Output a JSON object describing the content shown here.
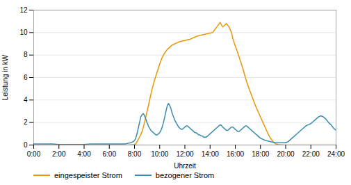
{
  "chart_data": {
    "type": "line",
    "xlabel": "Uhrzeit",
    "ylabel": "Leistung in kW",
    "xlim": [
      0,
      24
    ],
    "ylim": [
      0,
      12
    ],
    "xticks": [
      {
        "value": 0,
        "label": "0:00"
      },
      {
        "value": 2,
        "label": "2:00"
      },
      {
        "value": 4,
        "label": "4:00"
      },
      {
        "value": 6,
        "label": "6:00"
      },
      {
        "value": 8,
        "label": "8:00"
      },
      {
        "value": 10,
        "label": "10:00"
      },
      {
        "value": 12,
        "label": "12:00"
      },
      {
        "value": 14,
        "label": "14:00"
      },
      {
        "value": 16,
        "label": "16:00"
      },
      {
        "value": 18,
        "label": "18:00"
      },
      {
        "value": 20,
        "label": "20:00"
      },
      {
        "value": 22,
        "label": "22:00"
      },
      {
        "value": 24,
        "label": "24:00"
      }
    ],
    "yticks": [
      0,
      2,
      4,
      6,
      8,
      10,
      12
    ],
    "grid": true,
    "legend": "bottom",
    "series": [
      {
        "name": "eingespeister Strom",
        "color": "#E8960A",
        "x": [
          0,
          0.5,
          1,
          1.5,
          2,
          2.5,
          3,
          3.5,
          4,
          4.5,
          5,
          5.5,
          6,
          6.5,
          7,
          7.5,
          8.0,
          8.1,
          8.2,
          8.4,
          8.6,
          8.8,
          9.0,
          9.2,
          9.4,
          9.6,
          9.8,
          10.0,
          10.2,
          10.4,
          10.6,
          10.8,
          11.0,
          11.2,
          11.4,
          11.6,
          11.8,
          12.0,
          12.2,
          12.4,
          12.6,
          12.8,
          13.0,
          13.2,
          13.4,
          13.6,
          13.8,
          14.0,
          14.2,
          14.4,
          14.6,
          14.8,
          15.0,
          15.3,
          15.5,
          15.7,
          15.8,
          16.0,
          16.2,
          16.4,
          16.6,
          16.8,
          17.0,
          17.2,
          17.4,
          17.6,
          17.8,
          18.0,
          18.2,
          18.4,
          18.6,
          18.8,
          19.0,
          19.2,
          19.4,
          19.6,
          19.8,
          19.9,
          20.0,
          20.5,
          21,
          21.5,
          22,
          22.5,
          23,
          23.5,
          24
        ],
        "values": [
          0,
          0,
          0,
          0,
          0,
          0,
          0,
          0,
          0,
          0,
          0,
          0,
          0,
          0,
          0,
          0,
          0.05,
          0.1,
          0.3,
          0.7,
          1.2,
          2.0,
          3.0,
          4.0,
          5.0,
          5.8,
          6.5,
          7.2,
          7.8,
          8.2,
          8.5,
          8.7,
          8.9,
          9.0,
          9.1,
          9.2,
          9.25,
          9.3,
          9.35,
          9.4,
          9.5,
          9.6,
          9.7,
          9.75,
          9.8,
          9.85,
          9.9,
          9.95,
          10.0,
          10.3,
          10.6,
          10.9,
          10.5,
          10.8,
          10.5,
          10.0,
          9.5,
          8.8,
          8.2,
          7.5,
          6.8,
          6.0,
          5.3,
          4.7,
          4.1,
          3.5,
          3.0,
          2.5,
          2.0,
          1.5,
          1.0,
          0.6,
          0.3,
          0.1,
          0.05,
          0.02,
          0.01,
          0.005,
          0.0,
          0,
          0,
          0,
          0,
          0,
          0,
          0,
          0
        ]
      },
      {
        "name": "bezogener Strom",
        "color": "#3A8BAD",
        "x": [
          0,
          0.5,
          1,
          1.5,
          2,
          2.5,
          3,
          3.5,
          4,
          4.5,
          5,
          5.5,
          6,
          6.5,
          7,
          7.3,
          7.5,
          7.7,
          7.9,
          8.0,
          8.1,
          8.2,
          8.3,
          8.4,
          8.5,
          8.6,
          8.7,
          8.8,
          8.9,
          9.0,
          9.1,
          9.2,
          9.3,
          9.4,
          9.5,
          9.6,
          9.7,
          9.8,
          9.9,
          10.0,
          10.1,
          10.2,
          10.3,
          10.4,
          10.5,
          10.6,
          10.7,
          10.8,
          10.9,
          11.0,
          11.1,
          11.2,
          11.3,
          11.4,
          11.5,
          11.6,
          11.7,
          11.8,
          11.9,
          12.0,
          12.1,
          12.2,
          12.3,
          12.4,
          12.5,
          12.6,
          12.7,
          12.8,
          12.9,
          13.0,
          13.1,
          13.2,
          13.3,
          13.4,
          13.5,
          13.6,
          13.7,
          13.8,
          13.9,
          14.0,
          14.1,
          14.2,
          14.3,
          14.4,
          14.5,
          14.6,
          14.7,
          14.8,
          14.9,
          15.0,
          15.1,
          15.2,
          15.3,
          15.4,
          15.5,
          15.6,
          15.7,
          15.8,
          15.9,
          16.0,
          16.1,
          16.2,
          16.3,
          16.4,
          16.5,
          16.6,
          16.7,
          16.8,
          16.9,
          17.0,
          17.1,
          17.2,
          17.3,
          17.4,
          17.5,
          17.6,
          17.7,
          17.8,
          17.9,
          18.0,
          18.2,
          18.4,
          18.6,
          18.8,
          19.0,
          19.2,
          19.4,
          19.6,
          19.8,
          20.0,
          20.2,
          20.4,
          20.6,
          20.8,
          21.0,
          21.2,
          21.4,
          21.6,
          21.8,
          22.0,
          22.2,
          22.4,
          22.6,
          22.8,
          23.0,
          23.2,
          23.4,
          23.6,
          23.8,
          24.0
        ],
        "values": [
          0.1,
          0.1,
          0.1,
          0.1,
          0.05,
          0.05,
          0.05,
          0.05,
          0.05,
          0.1,
          0.1,
          0.1,
          0.1,
          0.1,
          0.1,
          0.1,
          0.15,
          0.2,
          0.3,
          0.4,
          0.6,
          1.0,
          1.5,
          2.0,
          2.5,
          2.7,
          2.8,
          2.6,
          2.3,
          2.0,
          1.7,
          1.5,
          1.3,
          1.2,
          1.1,
          1.0,
          0.9,
          0.9,
          1.0,
          1.1,
          1.3,
          1.6,
          2.0,
          2.5,
          3.0,
          3.5,
          3.7,
          3.5,
          3.2,
          2.8,
          2.5,
          2.2,
          2.0,
          1.8,
          1.6,
          1.5,
          1.4,
          1.4,
          1.5,
          1.6,
          1.7,
          1.7,
          1.6,
          1.5,
          1.4,
          1.3,
          1.2,
          1.1,
          1.1,
          1.0,
          0.9,
          0.9,
          0.8,
          0.8,
          0.7,
          0.7,
          0.7,
          0.8,
          0.9,
          1.0,
          1.1,
          1.2,
          1.3,
          1.4,
          1.5,
          1.6,
          1.7,
          1.8,
          1.75,
          1.6,
          1.5,
          1.4,
          1.3,
          1.3,
          1.4,
          1.5,
          1.6,
          1.6,
          1.5,
          1.4,
          1.3,
          1.2,
          1.2,
          1.3,
          1.4,
          1.5,
          1.6,
          1.7,
          1.7,
          1.6,
          1.5,
          1.4,
          1.3,
          1.2,
          1.1,
          1.0,
          0.9,
          0.8,
          0.7,
          0.6,
          0.5,
          0.4,
          0.35,
          0.3,
          0.25,
          0.2,
          0.2,
          0.2,
          0.2,
          0.2,
          0.3,
          0.5,
          0.7,
          0.9,
          1.1,
          1.3,
          1.5,
          1.7,
          1.8,
          1.9,
          2.1,
          2.3,
          2.5,
          2.6,
          2.5,
          2.3,
          2.0,
          1.8,
          1.5,
          1.3
        ]
      }
    ]
  }
}
